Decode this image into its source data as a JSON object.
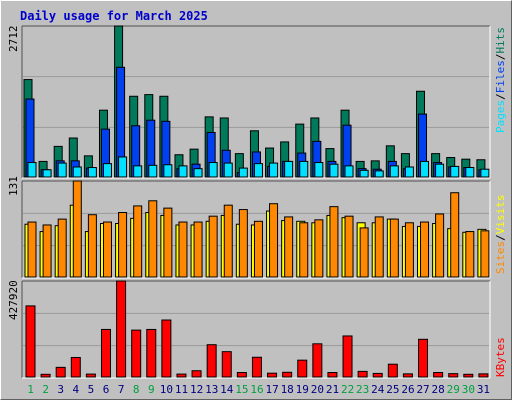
{
  "title": "Daily usage for March 2025",
  "colors": {
    "frame": "#c0c0c0",
    "plot_bg": "#c0c0c0",
    "grid": "#9a9a9a",
    "title": "#0000cc",
    "hits": "#007a5a",
    "files": "#0040f0",
    "pages": "#00e0ff",
    "visits": "#ffff00",
    "sites": "#ff8800",
    "kbytes": "#ff0000",
    "weekday_label": "#000080",
    "weekend_label": "#00a040"
  },
  "legend": {
    "pages": "Pages",
    "files": "Files",
    "hits": "Hits",
    "sites": "Sites",
    "visits": "Visits",
    "kbytes": "KBytes",
    "sep": "/"
  },
  "axis_max_labels": {
    "hits": "2712",
    "visits": "131",
    "kbytes": "427920"
  },
  "chart_data": [
    {
      "type": "bar",
      "title": "Daily usage for March 2025",
      "categories": [
        "1",
        "2",
        "3",
        "4",
        "5",
        "6",
        "7",
        "8",
        "9",
        "10",
        "11",
        "12",
        "13",
        "14",
        "15",
        "16",
        "17",
        "18",
        "19",
        "20",
        "21",
        "22",
        "23",
        "24",
        "25",
        "26",
        "27",
        "28",
        "29",
        "30",
        "31"
      ],
      "ylim": [
        0,
        2712
      ],
      "series": [
        {
          "name": "Hits",
          "values": [
            1750,
            280,
            550,
            700,
            380,
            1200,
            2712,
            1450,
            1480,
            1450,
            400,
            500,
            1080,
            1060,
            420,
            830,
            520,
            630,
            950,
            1060,
            510,
            1200,
            280,
            290,
            560,
            420,
            1540,
            420,
            350,
            320,
            310
          ]
        },
        {
          "name": "Files",
          "values": [
            1400,
            130,
            290,
            290,
            160,
            860,
            1970,
            920,
            1020,
            1000,
            150,
            230,
            800,
            480,
            80,
            450,
            190,
            280,
            430,
            640,
            280,
            930,
            150,
            140,
            280,
            150,
            1130,
            260,
            180,
            170,
            130
          ]
        },
        {
          "name": "Pages",
          "values": [
            260,
            130,
            250,
            180,
            170,
            240,
            360,
            200,
            210,
            220,
            200,
            150,
            260,
            250,
            160,
            240,
            250,
            280,
            280,
            260,
            230,
            200,
            120,
            110,
            200,
            180,
            280,
            230,
            190,
            170,
            140
          ]
        }
      ]
    },
    {
      "type": "bar",
      "categories": [
        "1",
        "2",
        "3",
        "4",
        "5",
        "6",
        "7",
        "8",
        "9",
        "10",
        "11",
        "12",
        "13",
        "14",
        "15",
        "16",
        "17",
        "18",
        "19",
        "20",
        "21",
        "22",
        "23",
        "24",
        "25",
        "26",
        "27",
        "28",
        "29",
        "30",
        "31"
      ],
      "ylim": [
        0,
        131
      ],
      "series": [
        {
          "name": "Visits",
          "values": [
            72,
            62,
            70,
            98,
            62,
            73,
            73,
            80,
            88,
            84,
            71,
            71,
            76,
            84,
            72,
            71,
            90,
            77,
            76,
            74,
            84,
            81,
            74,
            74,
            79,
            69,
            69,
            73,
            66,
            61,
            65
          ]
        },
        {
          "name": "Sites",
          "values": [
            75,
            71,
            79,
            131,
            85,
            75,
            88,
            97,
            104,
            94,
            75,
            75,
            83,
            98,
            92,
            76,
            100,
            82,
            74,
            78,
            96,
            83,
            67,
            82,
            79,
            74,
            75,
            86,
            115,
            62,
            63
          ]
        }
      ]
    },
    {
      "type": "bar",
      "categories": [
        "1",
        "2",
        "3",
        "4",
        "5",
        "6",
        "7",
        "8",
        "9",
        "10",
        "11",
        "12",
        "13",
        "14",
        "15",
        "16",
        "17",
        "18",
        "19",
        "20",
        "21",
        "22",
        "23",
        "24",
        "25",
        "26",
        "27",
        "28",
        "29",
        "30",
        "31"
      ],
      "ylim": [
        0,
        427920
      ],
      "series": [
        {
          "name": "KBytes",
          "values": [
            317000,
            12000,
            43000,
            87000,
            13000,
            212000,
            427920,
            209000,
            212000,
            254000,
            13000,
            28000,
            144000,
            113000,
            20000,
            88000,
            17000,
            21000,
            75000,
            148000,
            20000,
            183000,
            25000,
            16000,
            57000,
            14000,
            168000,
            20000,
            15000,
            12000,
            14000
          ]
        }
      ]
    }
  ]
}
